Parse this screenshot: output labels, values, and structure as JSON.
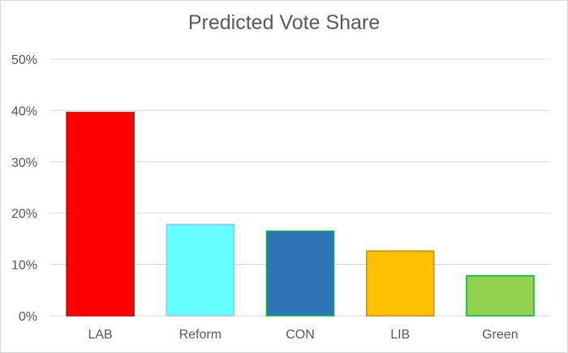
{
  "chart_data": {
    "type": "bar",
    "title": "Predicted Vote Share",
    "xlabel": "",
    "ylabel": "",
    "categories": [
      "LAB",
      "Reform",
      "CON",
      "LIB",
      "Green"
    ],
    "series": [
      {
        "values": [
          39.6,
          17.8,
          16.5,
          12.6,
          7.8
        ]
      }
    ],
    "bar_colors": [
      "#ff0000",
      "#66ffff",
      "#2e75b6",
      "#ffc000",
      "#92d050"
    ],
    "bar_borders": [
      "#c00000",
      "#9dc3e6",
      "#00b050",
      "#bf9000",
      "#00b050"
    ],
    "ylim": [
      0,
      50
    ],
    "yticks": [
      0,
      10,
      20,
      30,
      40,
      50
    ],
    "ytick_labels": [
      "0%",
      "10%",
      "20%",
      "30%",
      "40%",
      "50%"
    ],
    "grid": true,
    "legend": "none"
  }
}
